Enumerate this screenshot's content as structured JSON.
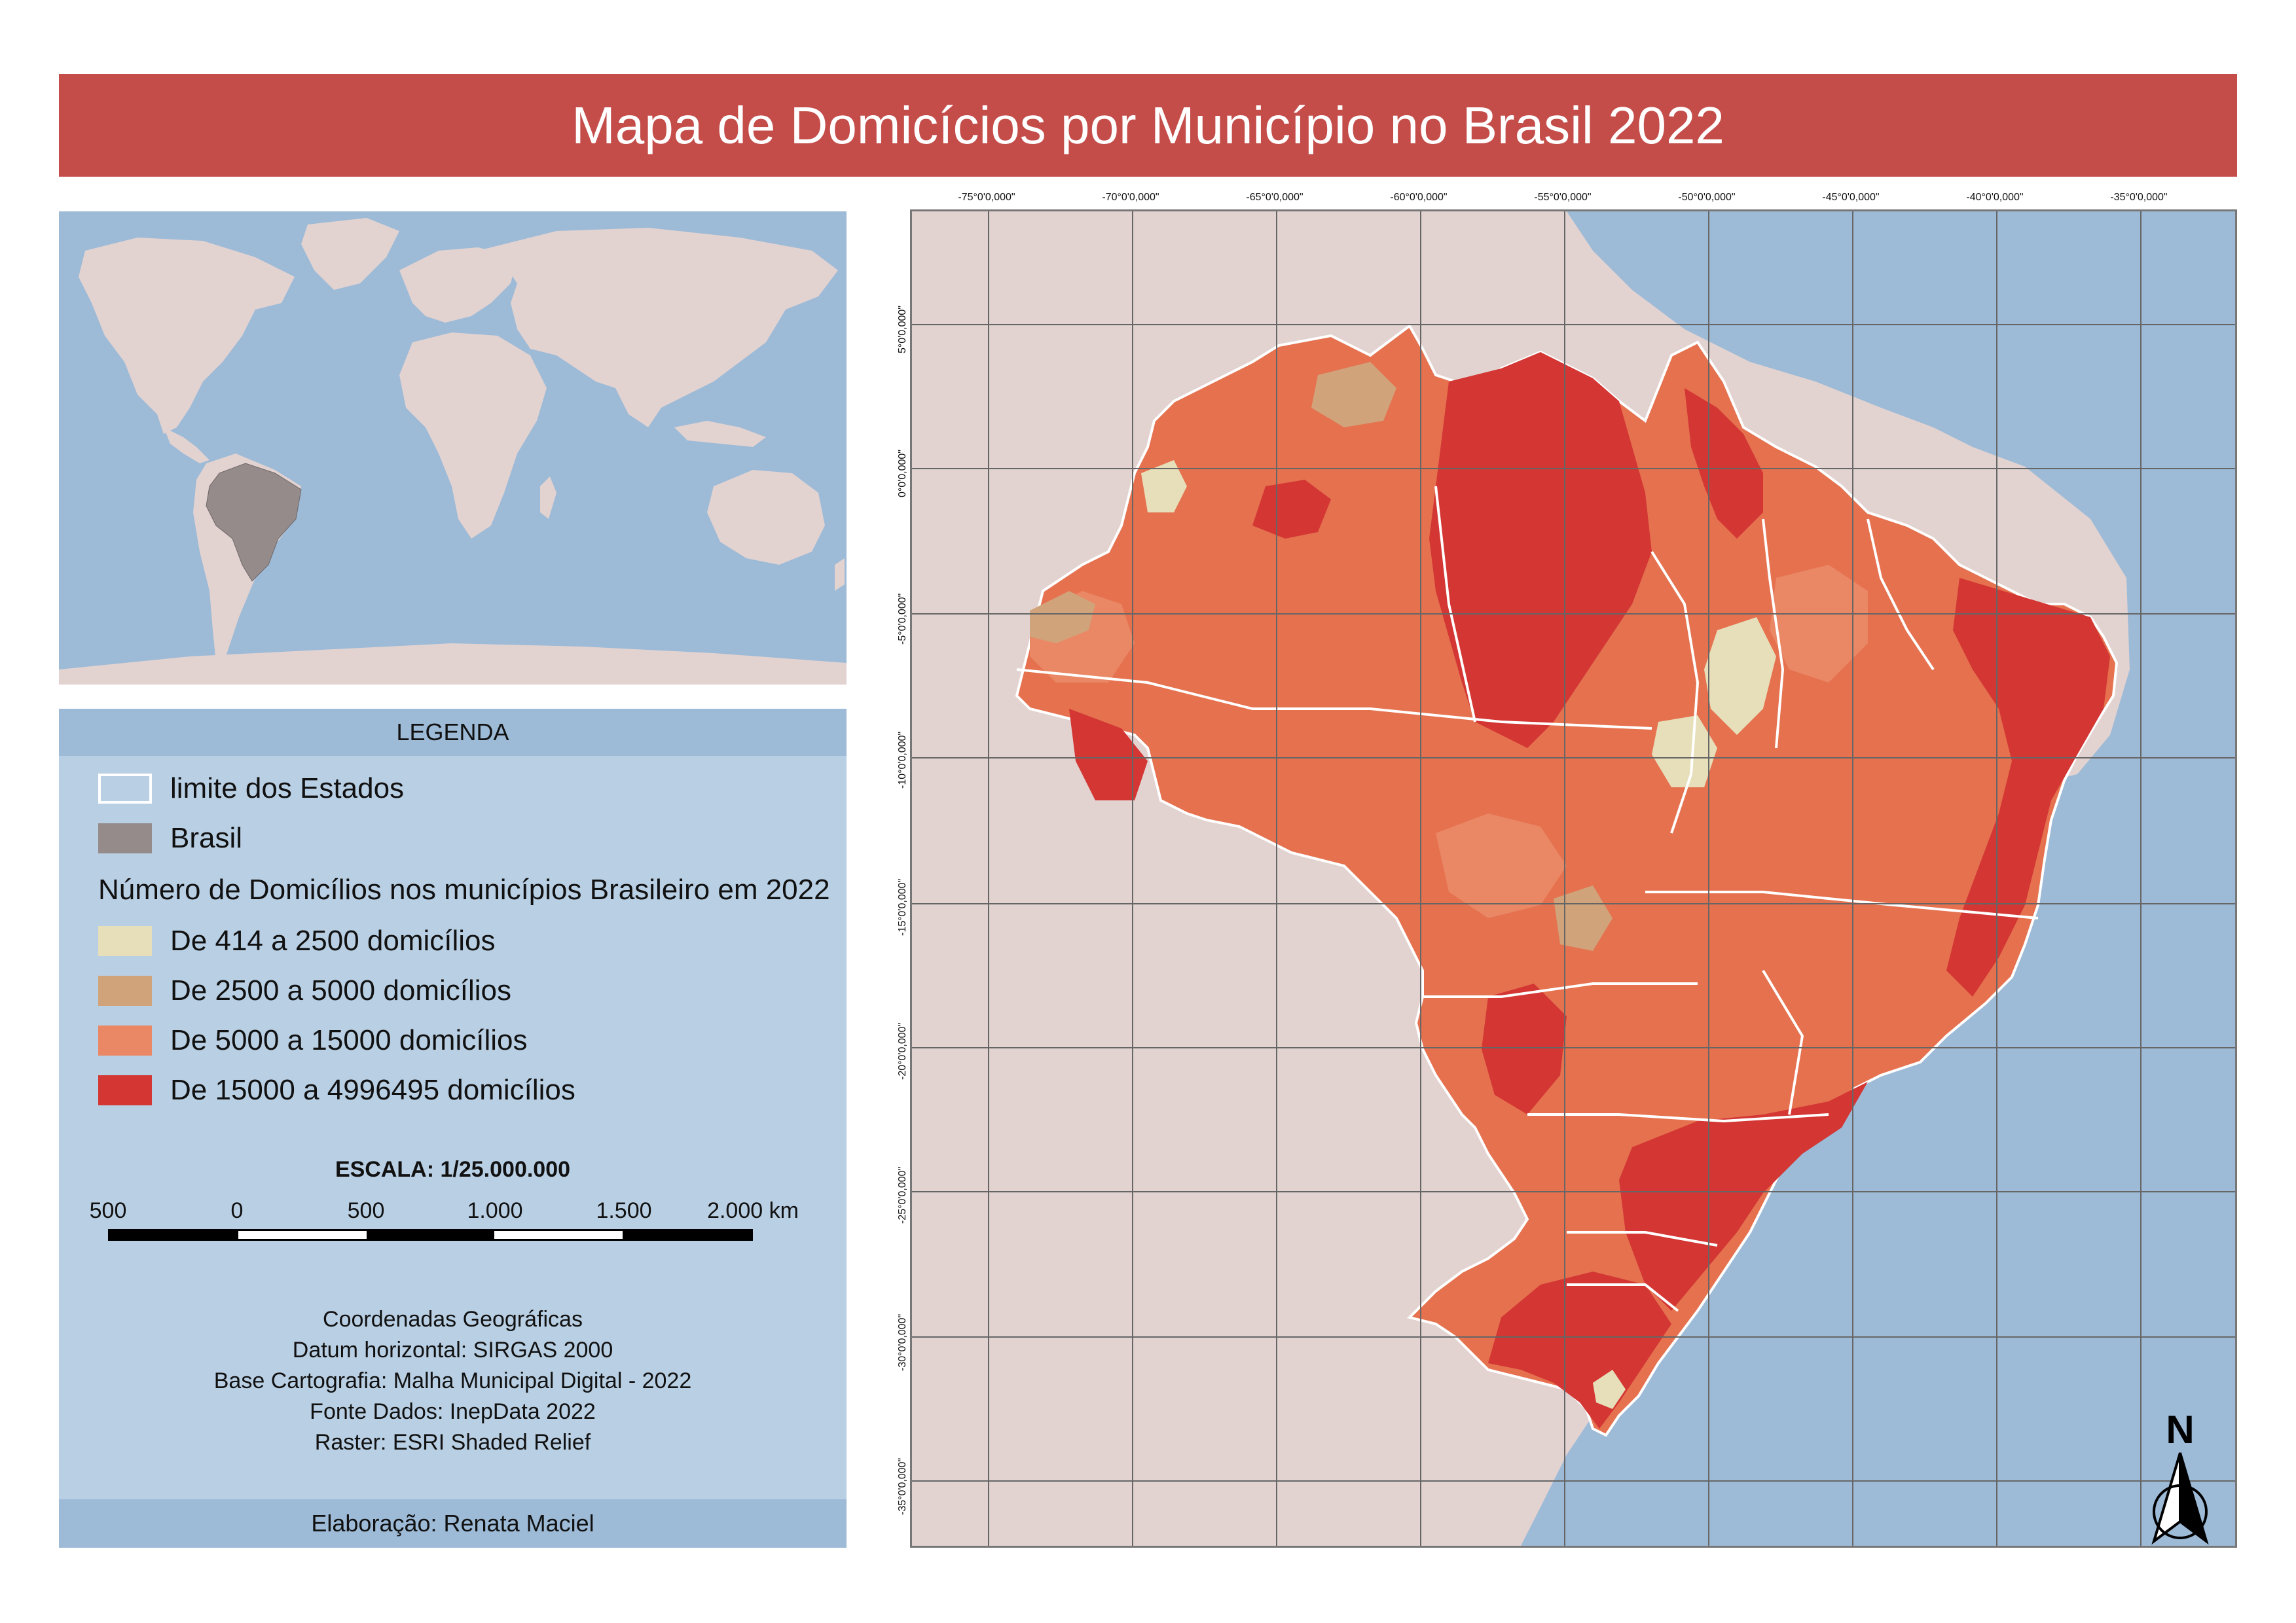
{
  "title": "Mapa de Domicícios por Município no Brasil 2022",
  "inset_map": {
    "highlight_label": "Brasil",
    "colors": {
      "ocean": "#9dbad7",
      "land": "#e2d3d1",
      "brazil": "#968b8b"
    }
  },
  "legend": {
    "header": "LEGENDA",
    "items": [
      {
        "label": "limite dos Estados",
        "type": "state-outline",
        "color": "#ffffff"
      },
      {
        "label": "Brasil",
        "type": "fill",
        "color": "#968b8b"
      }
    ],
    "classes_title": "Número de Domicílios nos municípios Brasileiro em 2022",
    "classes": [
      {
        "label": "De 414 a 2500 domicílios",
        "color": "#e6dfb9"
      },
      {
        "label": "De 2500 a 5000 domicílios",
        "color": "#d1a37a"
      },
      {
        "label": "De 5000 a 15000 domicílios",
        "color": "#ea8764"
      },
      {
        "label": "De 15000 a 4996495 domicílios",
        "color": "#d33633"
      }
    ]
  },
  "scale": {
    "title": "ESCALA: 1/25.000.000",
    "labels": [
      "500",
      "0",
      "500",
      "1.000",
      "1.500",
      "2.000 km"
    ]
  },
  "credits": [
    "Coordenadas Geográficas",
    "Datum horizontal: SIRGAS 2000",
    "Base Cartografia: Malha Municipal Digital - 2022",
    "Fonte Dados: InepData 2022",
    "Raster: ESRI Shaded Relief"
  ],
  "footer": "Elaboração: Renata Maciel",
  "grid": {
    "longitudes": [
      "-75°0'0,000\"",
      "-70°0'0,000\"",
      "-65°0'0,000\"",
      "-60°0'0,000\"",
      "-55°0'0,000\"",
      "-50°0'0,000\"",
      "-45°0'0,000\"",
      "-40°0'0,000\"",
      "-35°0'0,000\""
    ],
    "latitudes": [
      "5°0'0,000\"",
      "0°0'0,000\"",
      "-5°0'0,000\"",
      "-10°0'0,000\"",
      "-15°0'0,000\"",
      "-20°0'0,000\"",
      "-25°0'0,000\"",
      "-30°0'0,000\"",
      "-35°0'0,000\""
    ]
  },
  "north_arrow": {
    "letter": "N"
  },
  "map_colors": {
    "ocean": "#9dbad7",
    "continent": "#e2d3d1",
    "grid": "#666666",
    "state_border": "#ffffff"
  }
}
